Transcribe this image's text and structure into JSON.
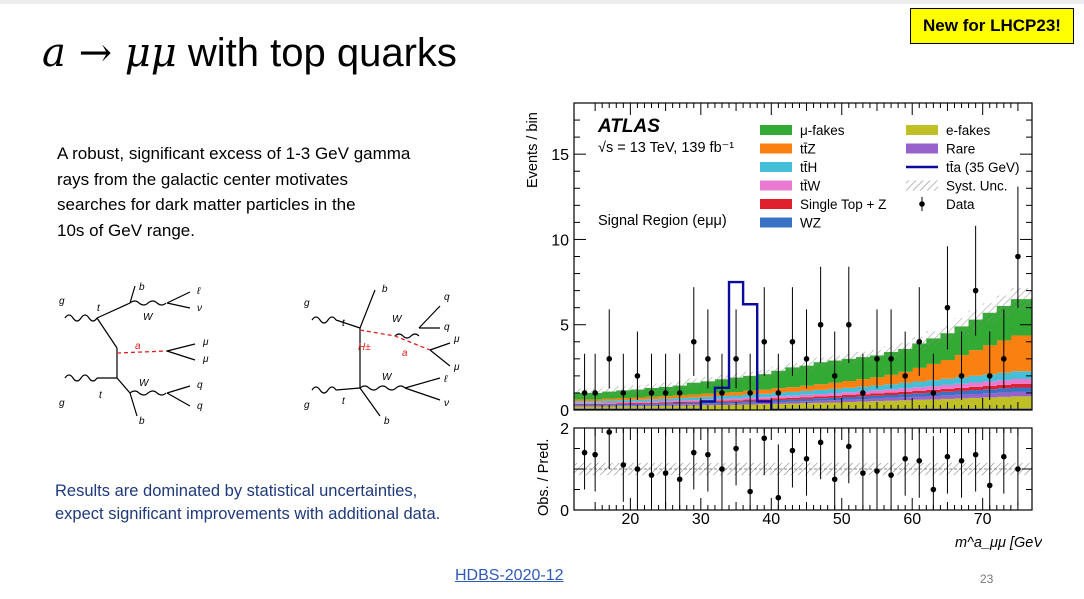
{
  "slide": {
    "badge": "New for LHCP23!",
    "title_math": "a → μμ",
    "title_text": " with top quarks",
    "paragraph_lines": [
      "A robust, significant excess of 1-3 GeV gamma",
      "rays from the galactic center motivates",
      "searches for dark matter particles in the",
      "10s of GeV range."
    ],
    "results_lines": [
      "Results are dominated by statistical uncertainties,",
      "expect significant improvements with additional data."
    ],
    "link_text": "HDBS-2020-12",
    "page_number": "23"
  },
  "diagram_left": {
    "labels": [
      "g",
      "t",
      "b",
      "W",
      "ℓ",
      "ν",
      "a",
      "μ",
      "μ",
      "g",
      "t",
      "W",
      "b",
      "q",
      "q"
    ]
  },
  "diagram_right": {
    "labels": [
      "g",
      "t",
      "b",
      "W",
      "q",
      "q",
      "H±",
      "a",
      "μ",
      "μ",
      "g",
      "t",
      "W",
      "ℓ",
      "ν",
      "b"
    ]
  },
  "chart_data": {
    "type": "histogram",
    "experiment": "ATLAS",
    "energy_label": "√s = 13 TeV, 139 fb⁻¹",
    "region_label": "Signal Region (eμμ)",
    "ylabel": "Events / bin",
    "ratio_ylabel": "Obs. / Pred.",
    "xlabel": "m^a_μμ [GeV]",
    "xlim": [
      12,
      77
    ],
    "ylim": [
      0,
      18
    ],
    "ratio_ylim": [
      0,
      2
    ],
    "xticks": [
      20,
      30,
      40,
      50,
      60,
      70
    ],
    "yticks": [
      0,
      5,
      10,
      15
    ],
    "ratio_yticks": [
      0,
      2
    ],
    "legend_left": [
      {
        "name": "μ-fakes",
        "color": "#33aa33"
      },
      {
        "name": "tt̄Z",
        "color": "#f98011"
      },
      {
        "name": "tt̄H",
        "color": "#45bfd8"
      },
      {
        "name": "tt̄W",
        "color": "#e87bd1"
      },
      {
        "name": "Single Top + Z",
        "color": "#e0202c"
      },
      {
        "name": "WZ",
        "color": "#3872c4"
      }
    ],
    "legend_right": [
      {
        "name": "e-fakes",
        "color": "#bfbf26"
      },
      {
        "name": "Rare",
        "color": "#9762cc"
      },
      {
        "name": "tt̄a (35 GeV)",
        "color": "#0b0b9e"
      },
      {
        "name": "Syst. Unc.",
        "color": "#999999"
      },
      {
        "name": "Data",
        "color": "#000000"
      }
    ],
    "bins": [
      12,
      14,
      16,
      18,
      20,
      22,
      24,
      26,
      28,
      30,
      32,
      34,
      36,
      38,
      40,
      42,
      44,
      46,
      48,
      50,
      52,
      54,
      56,
      58,
      60,
      62,
      64,
      66,
      68,
      70,
      72,
      74,
      77
    ],
    "stack": [
      {
        "name": "e-fakes",
        "values": [
          0.2,
          0.2,
          0.21,
          0.22,
          0.22,
          0.23,
          0.24,
          0.25,
          0.26,
          0.28,
          0.29,
          0.3,
          0.32,
          0.34,
          0.36,
          0.38,
          0.4,
          0.42,
          0.44,
          0.47,
          0.49,
          0.52,
          0.54,
          0.57,
          0.6,
          0.62,
          0.65,
          0.68,
          0.71,
          0.74,
          0.77,
          0.8
        ]
      },
      {
        "name": "Rare",
        "values": [
          0.06,
          0.06,
          0.06,
          0.06,
          0.07,
          0.07,
          0.07,
          0.08,
          0.08,
          0.08,
          0.09,
          0.09,
          0.1,
          0.1,
          0.11,
          0.12,
          0.12,
          0.13,
          0.14,
          0.14,
          0.15,
          0.16,
          0.17,
          0.18,
          0.19,
          0.2,
          0.21,
          0.22,
          0.23,
          0.24,
          0.25,
          0.26
        ]
      },
      {
        "name": "WZ",
        "values": [
          0.06,
          0.06,
          0.06,
          0.07,
          0.07,
          0.07,
          0.08,
          0.08,
          0.09,
          0.09,
          0.1,
          0.1,
          0.11,
          0.11,
          0.12,
          0.12,
          0.13,
          0.14,
          0.14,
          0.15,
          0.16,
          0.16,
          0.17,
          0.18,
          0.19,
          0.2,
          0.21,
          0.22,
          0.23,
          0.24,
          0.25,
          0.26
        ]
      },
      {
        "name": "Single Top + Z",
        "values": [
          0.04,
          0.04,
          0.04,
          0.05,
          0.05,
          0.05,
          0.06,
          0.06,
          0.06,
          0.07,
          0.07,
          0.07,
          0.08,
          0.08,
          0.09,
          0.09,
          0.1,
          0.1,
          0.11,
          0.12,
          0.12,
          0.13,
          0.14,
          0.14,
          0.15,
          0.16,
          0.17,
          0.18,
          0.19,
          0.2,
          0.21,
          0.22
        ]
      },
      {
        "name": "tt̄W",
        "values": [
          0.06,
          0.06,
          0.07,
          0.07,
          0.07,
          0.08,
          0.08,
          0.09,
          0.09,
          0.1,
          0.1,
          0.11,
          0.11,
          0.12,
          0.13,
          0.13,
          0.14,
          0.15,
          0.16,
          0.16,
          0.17,
          0.18,
          0.19,
          0.2,
          0.21,
          0.22,
          0.23,
          0.24,
          0.25,
          0.26,
          0.27,
          0.28
        ]
      },
      {
        "name": "tt̄H",
        "values": [
          0.1,
          0.1,
          0.11,
          0.11,
          0.12,
          0.13,
          0.13,
          0.14,
          0.15,
          0.16,
          0.17,
          0.18,
          0.19,
          0.2,
          0.21,
          0.22,
          0.23,
          0.24,
          0.25,
          0.26,
          0.28,
          0.29,
          0.3,
          0.32,
          0.33,
          0.35,
          0.36,
          0.38,
          0.4,
          0.41,
          0.43,
          0.45
        ]
      },
      {
        "name": "tt̄Z",
        "values": [
          0.1,
          0.1,
          0.11,
          0.12,
          0.13,
          0.14,
          0.15,
          0.16,
          0.17,
          0.18,
          0.19,
          0.2,
          0.22,
          0.24,
          0.26,
          0.28,
          0.3,
          0.33,
          0.36,
          0.4,
          0.44,
          0.48,
          0.55,
          0.65,
          0.8,
          0.95,
          1.1,
          1.3,
          1.5,
          1.7,
          1.9,
          2.1
        ]
      },
      {
        "name": "μ-fakes",
        "values": [
          0.38,
          0.38,
          0.42,
          0.45,
          0.47,
          0.52,
          0.54,
          0.57,
          0.7,
          0.72,
          0.79,
          0.85,
          0.87,
          0.91,
          1.02,
          1.16,
          1.18,
          1.29,
          1.3,
          1.3,
          1.29,
          1.28,
          1.34,
          1.34,
          1.43,
          1.5,
          1.57,
          1.68,
          1.79,
          1.91,
          2.02,
          2.13
        ]
      }
    ],
    "signal_tta_35GeV": {
      "bins": [
        12,
        30,
        32,
        34,
        36,
        38,
        40,
        77
      ],
      "values": [
        0,
        0.5,
        1.3,
        7.5,
        6.2,
        0.5,
        0
      ]
    },
    "data_points": {
      "x": [
        13.5,
        15,
        17,
        19,
        21,
        23,
        25,
        27,
        29,
        31,
        33,
        35,
        37,
        39,
        41,
        43,
        45,
        47,
        49,
        51,
        53,
        55,
        57,
        59,
        61,
        63,
        65,
        67,
        69,
        71,
        73,
        75
      ],
      "y": [
        1,
        1,
        3,
        1,
        2,
        1,
        1,
        1,
        4,
        3,
        1,
        3,
        1,
        4,
        1,
        4,
        3,
        5,
        2,
        5,
        1,
        3,
        3,
        2,
        4,
        1,
        6,
        2,
        7,
        2,
        3,
        9
      ],
      "err_up": [
        2.3,
        2.3,
        2.9,
        2.3,
        2.6,
        2.3,
        2.3,
        2.3,
        3.2,
        2.9,
        2.3,
        2.9,
        2.3,
        3.2,
        2.3,
        3.2,
        2.9,
        3.4,
        2.6,
        3.4,
        2.3,
        2.9,
        2.9,
        2.6,
        3.2,
        2.3,
        3.6,
        2.6,
        3.8,
        2.6,
        2.9,
        4.1
      ],
      "ratio": [
        1.4,
        1.35,
        1.9,
        1.1,
        1.0,
        0.85,
        0.9,
        0.75,
        1.4,
        1.35,
        1.0,
        1.5,
        0.45,
        1.75,
        0.3,
        1.45,
        1.25,
        1.65,
        0.75,
        1.55,
        0.9,
        0.95,
        0.85,
        1.25,
        1.2,
        0.5,
        1.3,
        1.2,
        1.35,
        0.6,
        1.3,
        1.0
      ]
    }
  }
}
